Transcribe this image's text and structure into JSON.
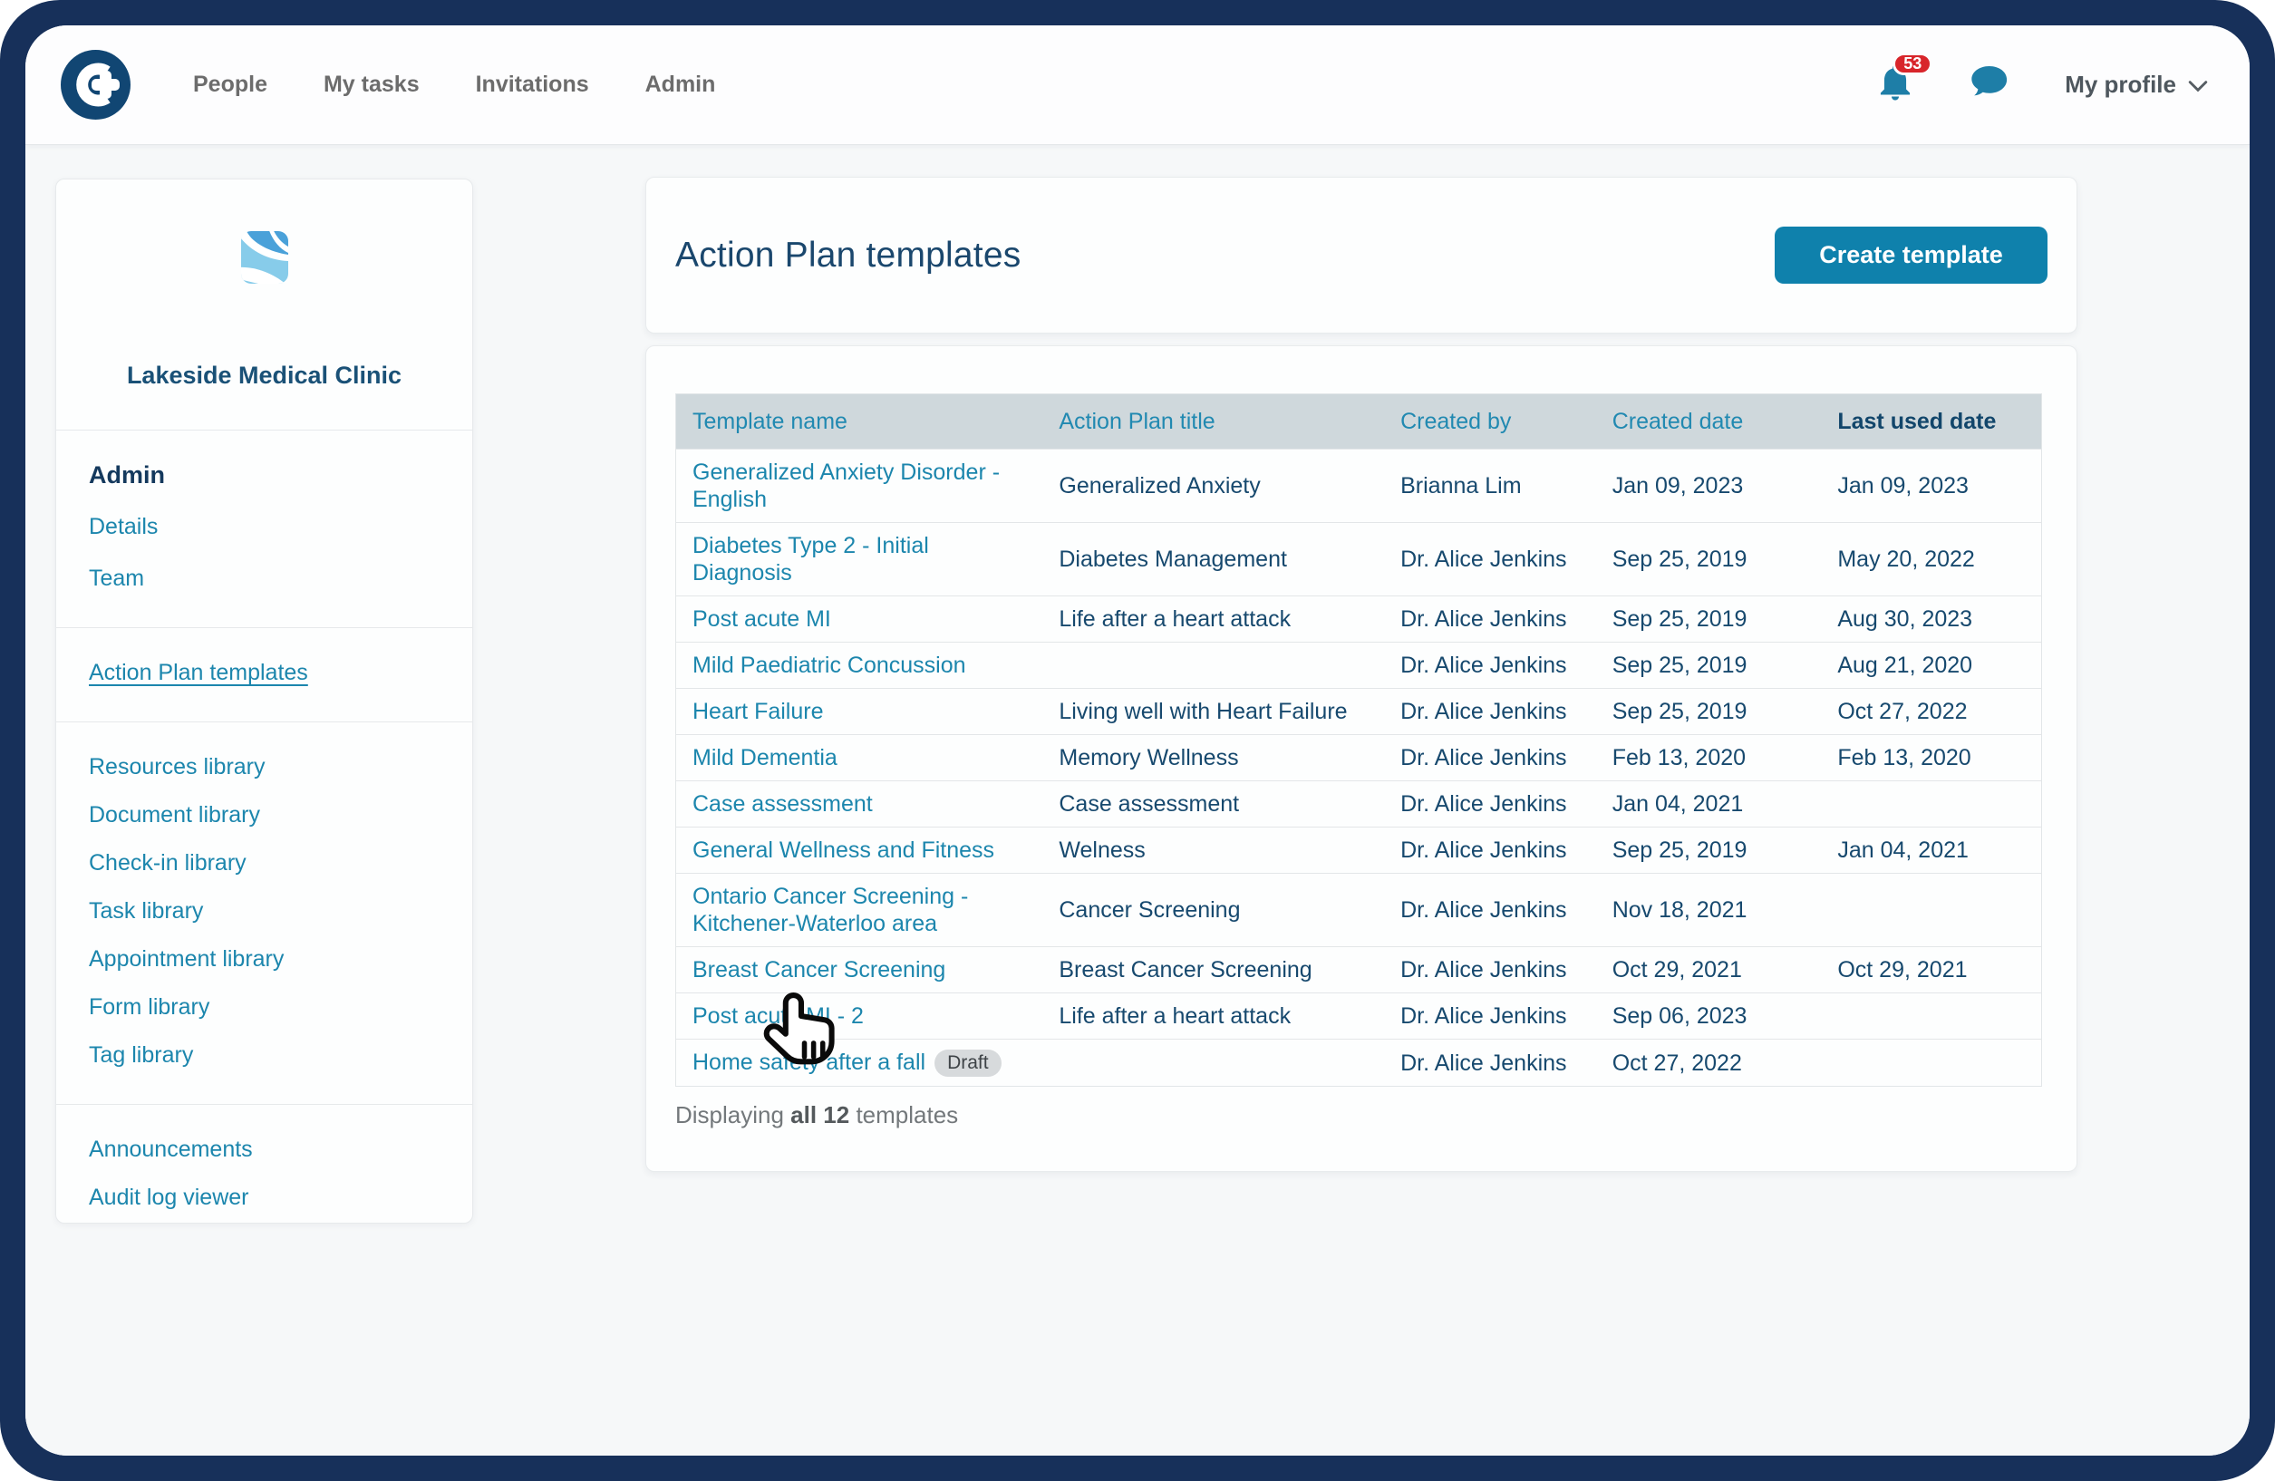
{
  "topbar": {
    "nav_items": [
      "People",
      "My tasks",
      "Invitations",
      "Admin"
    ],
    "notifications_count": "53",
    "profile_label": "My profile"
  },
  "sidebar": {
    "clinic_name": "Lakeside Medical Clinic",
    "admin_heading": "Admin",
    "admin_items": [
      "Details",
      "Team"
    ],
    "active_item": "Action Plan templates",
    "library_items": [
      "Resources library",
      "Document library",
      "Check-in library",
      "Task library",
      "Appointment library",
      "Form library",
      "Tag library"
    ],
    "footer_items": [
      "Announcements",
      "Audit log viewer"
    ]
  },
  "header": {
    "title": "Action Plan templates",
    "create_button_label": "Create template"
  },
  "table": {
    "columns": [
      "Template name",
      "Action Plan title",
      "Created by",
      "Created date",
      "Last used date"
    ],
    "rows": [
      {
        "name": "Generalized Anxiety Disorder - English",
        "title": "Generalized Anxiety",
        "created_by": "Brianna Lim",
        "created_date": "Jan 09, 2023",
        "last_used_date": "Jan 09, 2023"
      },
      {
        "name": "Diabetes Type 2 - Initial Diagnosis",
        "title": "Diabetes Management",
        "created_by": "Dr. Alice Jenkins",
        "created_date": "Sep 25, 2019",
        "last_used_date": "May 20, 2022"
      },
      {
        "name": "Post acute MI",
        "title": "Life after a heart attack",
        "created_by": "Dr. Alice Jenkins",
        "created_date": "Sep 25, 2019",
        "last_used_date": "Aug 30, 2023"
      },
      {
        "name": "Mild Paediatric Concussion",
        "title": "",
        "created_by": "Dr. Alice Jenkins",
        "created_date": "Sep 25, 2019",
        "last_used_date": "Aug 21, 2020"
      },
      {
        "name": "Heart Failure",
        "title": "Living well with Heart Failure",
        "created_by": "Dr. Alice Jenkins",
        "created_date": "Sep 25, 2019",
        "last_used_date": "Oct 27, 2022"
      },
      {
        "name": "Mild Dementia",
        "title": "Memory Wellness",
        "created_by": "Dr. Alice Jenkins",
        "created_date": "Feb 13, 2020",
        "last_used_date": "Feb 13, 2020"
      },
      {
        "name": "Case assessment",
        "title": "Case assessment",
        "created_by": "Dr. Alice Jenkins",
        "created_date": "Jan 04, 2021",
        "last_used_date": ""
      },
      {
        "name": "General Wellness and Fitness",
        "title": "Welness",
        "created_by": "Dr. Alice Jenkins",
        "created_date": "Sep 25, 2019",
        "last_used_date": "Jan 04, 2021"
      },
      {
        "name": "Ontario Cancer Screening - Kitchener-Waterloo area",
        "title": "Cancer Screening",
        "created_by": "Dr. Alice Jenkins",
        "created_date": "Nov 18, 2021",
        "last_used_date": ""
      },
      {
        "name": "Breast Cancer Screening",
        "title": "Breast Cancer Screening",
        "created_by": "Dr. Alice Jenkins",
        "created_date": "Oct 29, 2021",
        "last_used_date": "Oct 29, 2021"
      },
      {
        "name": "Post acute MI - 2",
        "title": "Life after a heart attack",
        "created_by": "Dr. Alice Jenkins",
        "created_date": "Sep 06, 2023",
        "last_used_date": ""
      },
      {
        "name": "Home safety after a fall",
        "badge": "Draft",
        "title": "",
        "created_by": "Dr. Alice Jenkins",
        "created_date": "Oct 27, 2022",
        "last_used_date": ""
      }
    ],
    "summary": {
      "prefix": "Displaying ",
      "bold": "all 12",
      "suffix": " templates"
    }
  },
  "icons": {
    "bell": "notifications-bell-icon",
    "chat": "chat-bubble-icon",
    "chevron": "chevron-down-icon",
    "cursor": "hand-pointer-cursor"
  },
  "colors": {
    "frame_navy": "#17305A",
    "logo_navy": "#114673",
    "accent_teal": "#0F81AC",
    "link_teal": "#1C86AD",
    "badge_red": "#D8252B",
    "table_header_bg": "#CFD8DC"
  }
}
